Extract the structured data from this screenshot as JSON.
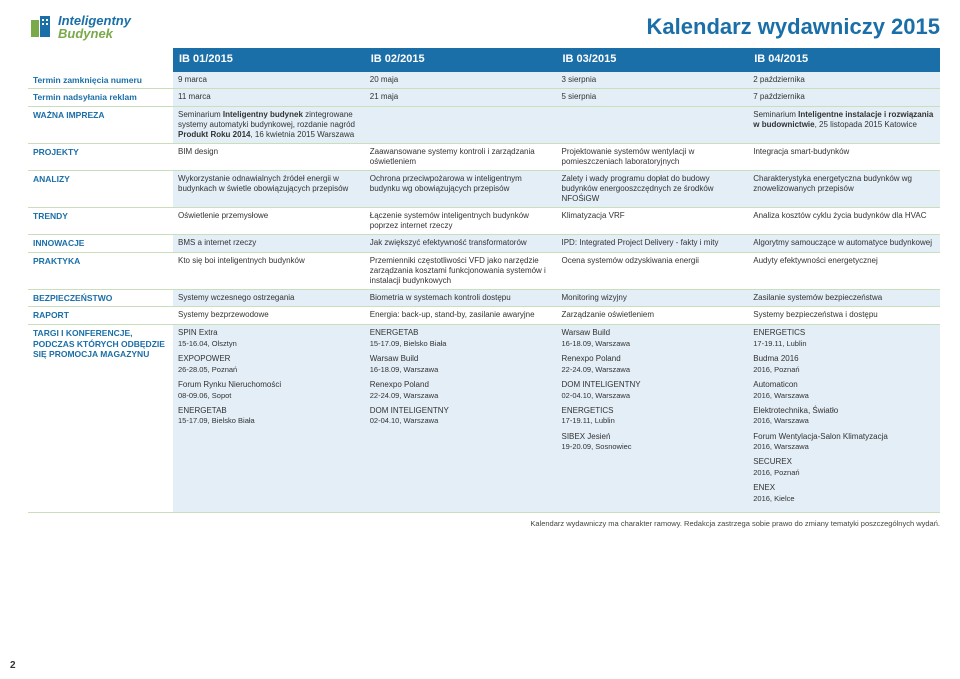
{
  "colors": {
    "primary": "#1b6fa8",
    "accent": "#7aa94a",
    "stripe": "#e3eef6",
    "border": "#c9dfbb"
  },
  "logo": {
    "line1": "Inteligentny",
    "line2": "Budynek"
  },
  "title": "Kalendarz wydawniczy 2015",
  "issues": [
    "IB 01/2015",
    "IB 02/2015",
    "IB 03/2015",
    "IB 04/2015"
  ],
  "rows": {
    "close": {
      "label": "Termin zamknięcia numeru",
      "cells": [
        "9 marca",
        "20 maja",
        "3 sierpnia",
        "2 października"
      ]
    },
    "ads": {
      "label": "Termin nadsyłania reklam",
      "cells": [
        "11 marca",
        "21 maja",
        "5 sierpnia",
        "7 października"
      ]
    },
    "event": {
      "label": "WAŻNA IMPREZA",
      "cells": [
        "Seminarium Inteligentny budynek zintegrowane systemy automatyki budynkowej, rozdanie nagród Produkt Roku 2014, 16 kwietnia 2015 Warszawa",
        "",
        "",
        "Seminarium Inteligentne instalacje i rozwiązania w budownictwie, 25 listopada 2015 Katowice"
      ]
    },
    "projekty": {
      "label": "PROJEKTY",
      "cells": [
        "BIM design",
        "Zaawansowane systemy kontroli i zarządzania oświetleniem",
        "Projektowanie systemów wentylacji w pomieszczeniach laboratoryjnych",
        "Integracja smart-budynków"
      ]
    },
    "analizy": {
      "label": "ANALIZY",
      "cells": [
        "Wykorzystanie odnawialnych źródeł energii w budynkach w świetle obowiązujących przepisów",
        "Ochrona przeciwpożarowa w inteligentnym budynku wg obowiązujących przepisów",
        "Zalety i wady programu dopłat do budowy budynków energooszczędnych ze środków NFOŚiGW",
        "Charakterystyka energetyczna budynków wg znowelizowanych przepisów"
      ]
    },
    "trendy": {
      "label": "TRENDY",
      "cells": [
        "Oświetlenie przemysłowe",
        "Łączenie systemów inteligentnych budynków poprzez internet rzeczy",
        "Klimatyzacja VRF",
        "Analiza kosztów cyklu życia budynków dla HVAC"
      ]
    },
    "innowacje": {
      "label": "INNOWACJE",
      "cells": [
        "BMS a internet rzeczy",
        "Jak zwiększyć efektywność transformatorów",
        "IPD: Integrated Project Delivery - fakty i mity",
        "Algorytmy samouczące w automatyce budynkowej"
      ]
    },
    "praktyka": {
      "label": "PRAKTYKA",
      "cells": [
        "Kto się boi inteligentnych budynków",
        "Przemienniki częstotliwości VFD jako narzędzie zarządzania kosztami funkcjonowania systemów i instalacji budynkowych",
        "Ocena systemów odzyskiwania energii",
        "Audyty efektywności energetycznej"
      ]
    },
    "bezp": {
      "label": "BEZPIECZEŃSTWO",
      "cells": [
        "Systemy wczesnego ostrzegania",
        "Biometria w systemach kontroli dostępu",
        "Monitoring wizyjny",
        "Zasilanie systemów bezpieczeństwa"
      ]
    },
    "raport": {
      "label": "RAPORT",
      "cells": [
        "Systemy bezprzewodowe",
        "Energia: back-up, stand-by, zasilanie awaryjne",
        "Zarządzanie oświetleniem",
        "Systemy bezpieczeństwa i dostępu"
      ]
    }
  },
  "targi": {
    "label": "TARGI I KONFERENCJE, PODCZAS KTÓRYCH ODBĘDZIE SIĘ PROMOCJA MAGAZYNU",
    "col1": [
      {
        "name": "SPIN Extra",
        "date": "15-16.04, Olsztyn"
      },
      {
        "name": "EXPOPOWER",
        "date": "26-28.05, Poznań"
      },
      {
        "name": "Forum Rynku Nieruchomości",
        "date": "08-09.06, Sopot"
      },
      {
        "name": "ENERGETAB",
        "date": "15-17.09, Bielsko Biała"
      }
    ],
    "col2": [
      {
        "name": "ENERGETAB",
        "date": "15-17.09, Bielsko Biała"
      },
      {
        "name": "Warsaw Build",
        "date": "16-18.09, Warszawa"
      },
      {
        "name": "Renexpo Poland",
        "date": "22-24.09, Warszawa"
      },
      {
        "name": "DOM INTELIGENTNY",
        "date": "02-04.10, Warszawa"
      }
    ],
    "col3": [
      {
        "name": "Warsaw Build",
        "date": "16-18.09, Warszawa"
      },
      {
        "name": "Renexpo Poland",
        "date": "22-24.09, Warszawa"
      },
      {
        "name": "DOM INTELIGENTNY",
        "date": "02-04.10, Warszawa"
      },
      {
        "name": "ENERGETICS",
        "date": "17-19.11, Lublin"
      },
      {
        "name": "SIBEX Jesień",
        "date": "19-20.09, Sosnowiec"
      }
    ],
    "col4": [
      {
        "name": "ENERGETICS",
        "date": "17-19.11, Lublin"
      },
      {
        "name": "Budma 2016",
        "date": "2016, Poznań"
      },
      {
        "name": "Automaticon",
        "date": "2016, Warszawa"
      },
      {
        "name": "Elektrotechnika, Światło",
        "date": "2016, Warszawa"
      },
      {
        "name": "Forum Wentylacja-Salon Klimatyzacja",
        "date": "2016, Warszawa"
      },
      {
        "name": "SECUREX",
        "date": "2016, Poznań"
      },
      {
        "name": "ENEX",
        "date": "2016, Kielce"
      }
    ]
  },
  "footnote": "Kalendarz wydawniczy ma charakter ramowy. Redakcja zastrzega sobie prawo do zmiany tematyki poszczególnych wydań.",
  "pagenum": "2"
}
